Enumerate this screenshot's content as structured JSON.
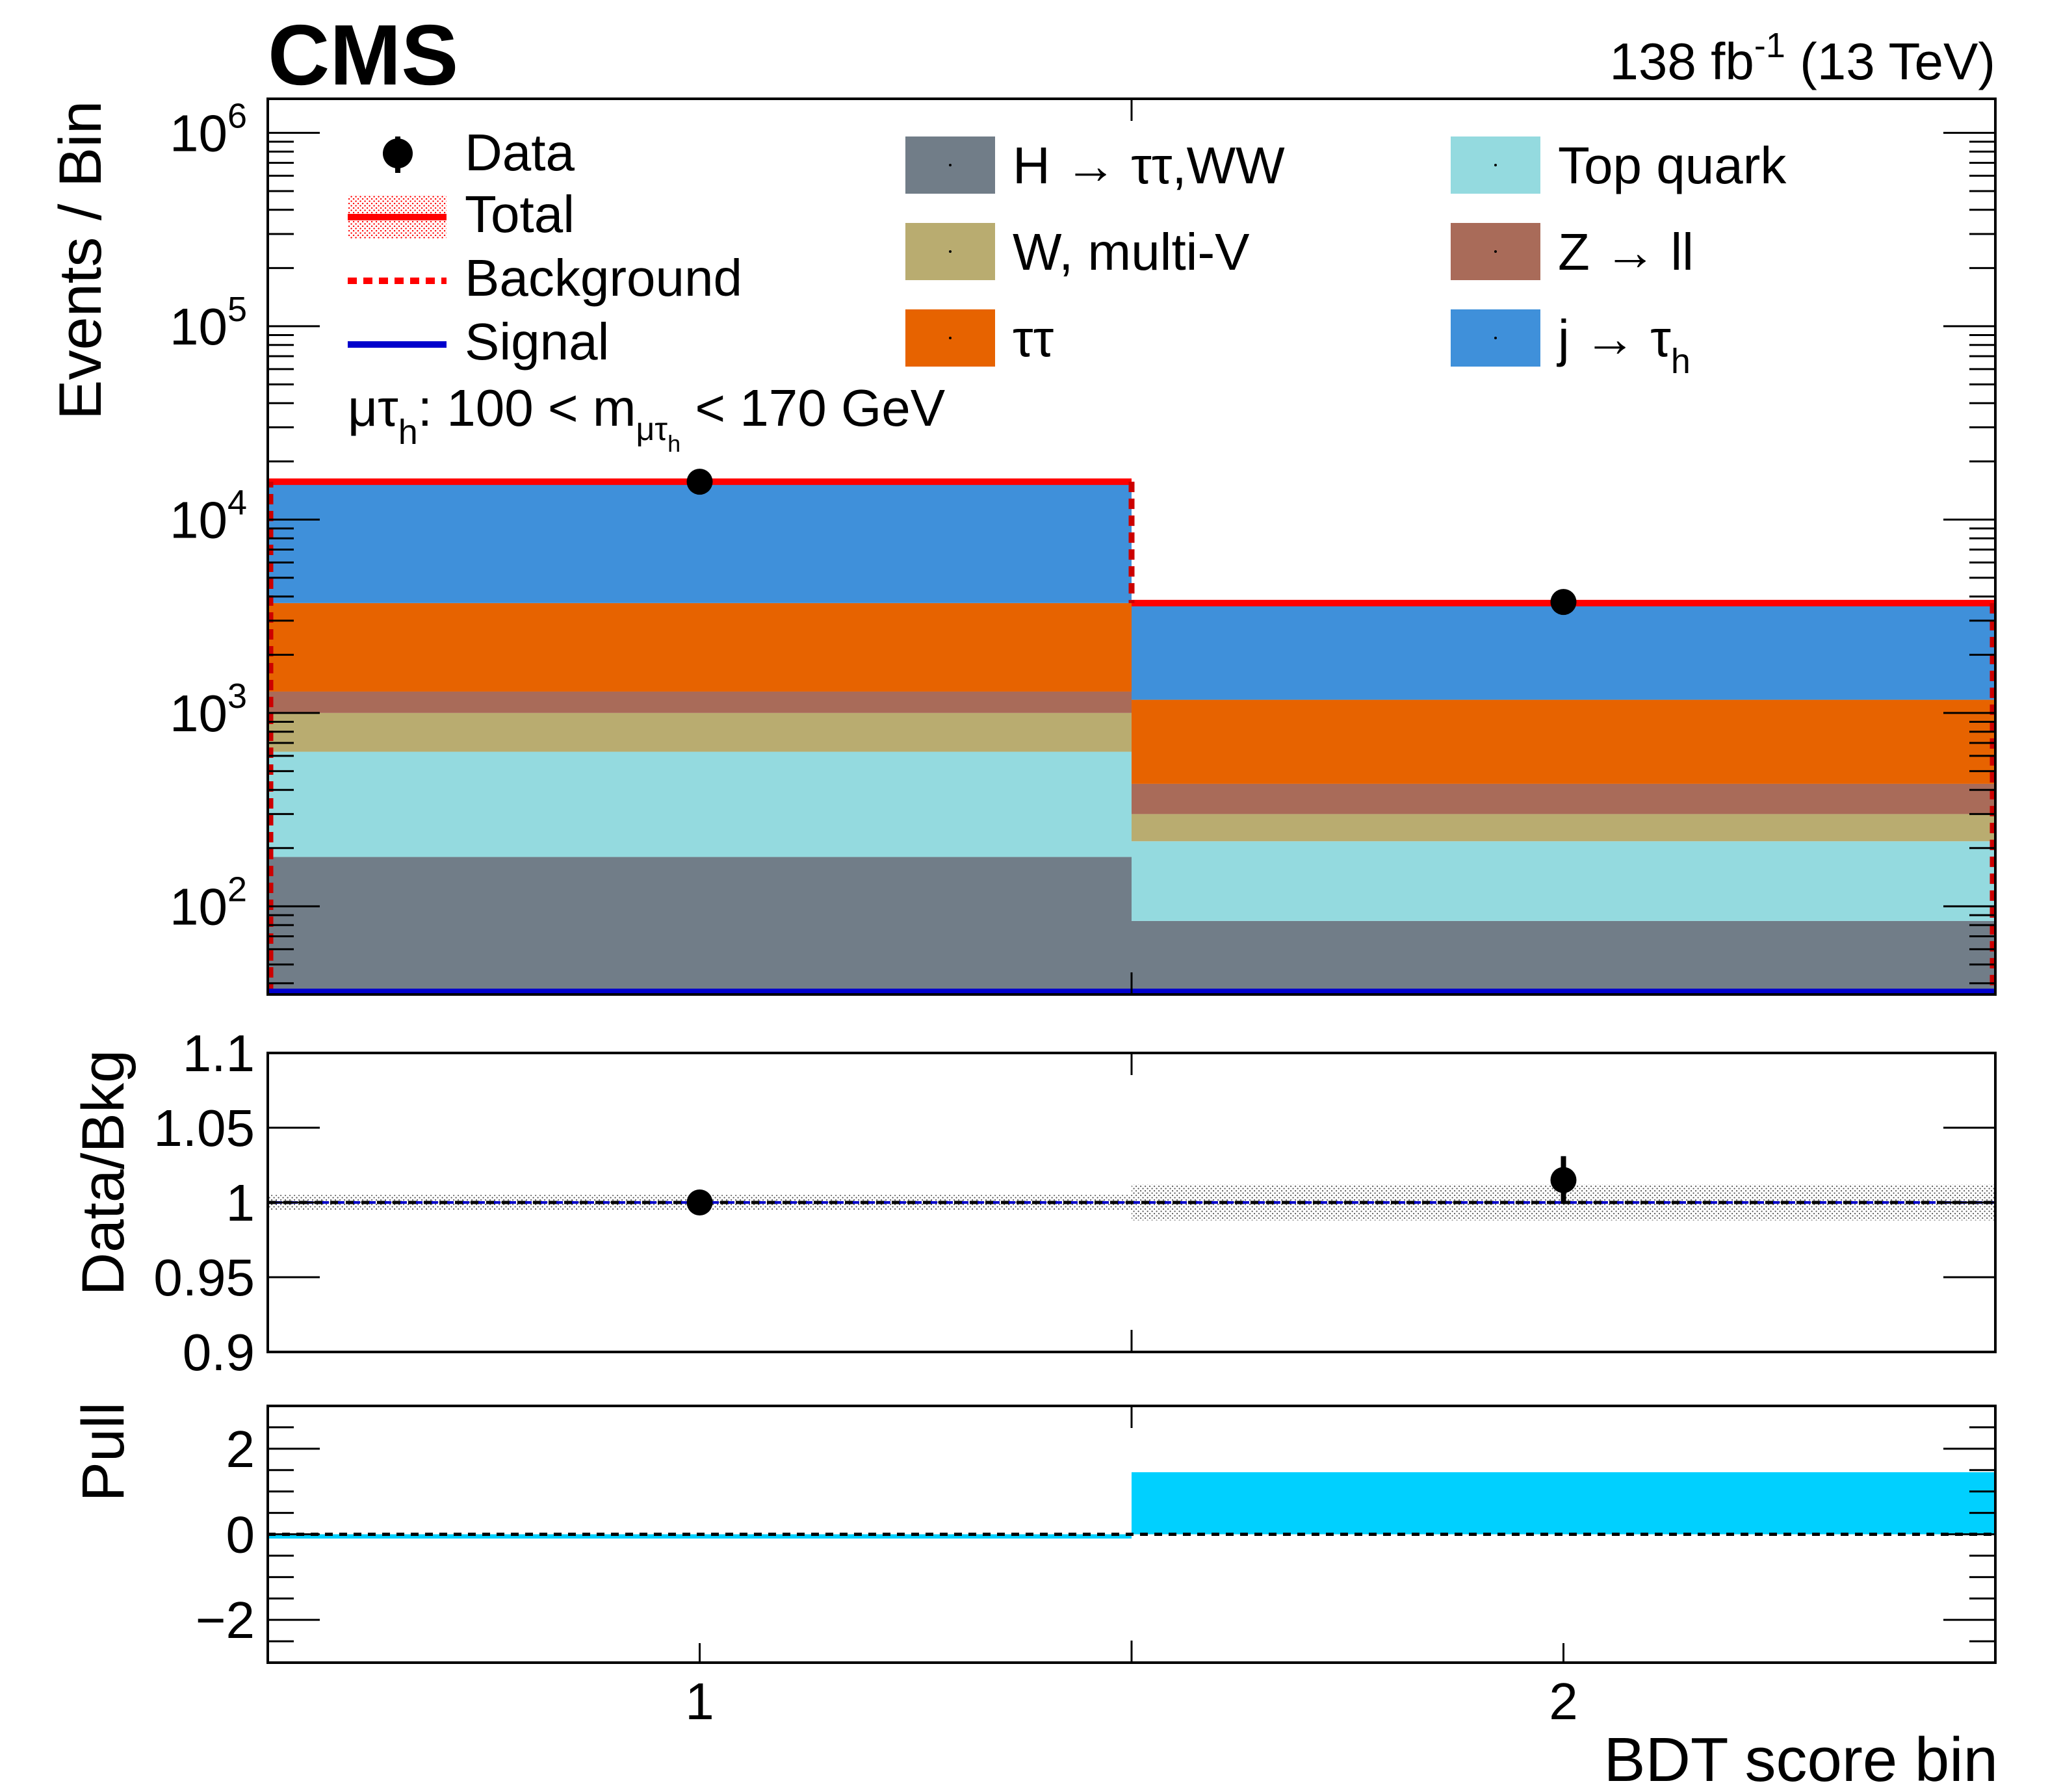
{
  "header": {
    "experiment": "CMS",
    "lumi": "138",
    "lumi_unit": "fb",
    "lumi_exp": "-1",
    "energy": "(13 TeV)"
  },
  "category": {
    "prefix": "μτ",
    "prefix_sub": "h",
    "text": ": 100 < m",
    "m_sub": "μτ",
    "m_subsub": "h",
    "suffix": " < 170 GeV"
  },
  "legend": {
    "data": "Data",
    "total": "Total",
    "background": "Background",
    "signal": "Signal",
    "stack": [
      {
        "key": "htt",
        "label": "H → ττ,WW",
        "color": "#717d88"
      },
      {
        "key": "wmv",
        "label": "W, multi-V",
        "color": "#b9ac70"
      },
      {
        "key": "tautau",
        "label": "ττ",
        "color": "#e76300"
      },
      {
        "key": "top",
        "label": "Top quark",
        "color": "#94dadf"
      },
      {
        "key": "zll",
        "label": "Z → ll",
        "color": "#a96b59"
      },
      {
        "key": "jtau",
        "label": "j → τ",
        "label_sub": "h",
        "color": "#3f90da"
      }
    ]
  },
  "colors": {
    "total": "#ff0000",
    "background_line": "#ff0000",
    "signal": "#0000cc",
    "pull_fill": "#00d0ff",
    "data": "#000000"
  },
  "chart_data": [
    {
      "type": "bar",
      "stacked": true,
      "panel": "main",
      "ylabel": "Events / Bin",
      "yscale": "log",
      "ylim": [
        35,
        1500000
      ],
      "y_ticks": [
        "10^2",
        "10^3",
        "10^4",
        "10^5",
        "10^6"
      ],
      "categories": [
        "1",
        "2"
      ],
      "series": [
        {
          "name": "H → ττ,WW",
          "values": [
            180,
            84
          ]
        },
        {
          "name": "Top quark",
          "values": [
            450,
            133
          ]
        },
        {
          "name": "W, multi-V",
          "values": [
            370,
            83
          ]
        },
        {
          "name": "Z → ll",
          "values": [
            290,
            130
          ]
        },
        {
          "name": "ττ",
          "values": [
            2410,
            740
          ]
        },
        {
          "name": "j → τh",
          "values": [
            12000,
            2530
          ]
        }
      ],
      "total": [
        15700,
        3700
      ],
      "data": [
        15700,
        3750
      ]
    },
    {
      "type": "scatter",
      "panel": "ratio",
      "ylabel": "Data/Bkg",
      "ylim": [
        0.9,
        1.1
      ],
      "y_ticks": [
        "0.9",
        "0.95",
        "1",
        "1.05",
        "1.1"
      ],
      "x": [
        1,
        2
      ],
      "y": [
        1.0,
        1.015
      ],
      "y_err": [
        0.002,
        0.016
      ],
      "band_halfwidth": [
        0.005,
        0.012
      ]
    },
    {
      "type": "bar",
      "panel": "pull",
      "ylabel": "Pull",
      "xlabel": "BDT score bin",
      "ylim": [
        -3,
        3
      ],
      "y_ticks": [
        "−2",
        "0",
        "2"
      ],
      "x_ticks": [
        "1",
        "2"
      ],
      "categories": [
        "1",
        "2"
      ],
      "values": [
        -0.1,
        1.45
      ]
    }
  ]
}
